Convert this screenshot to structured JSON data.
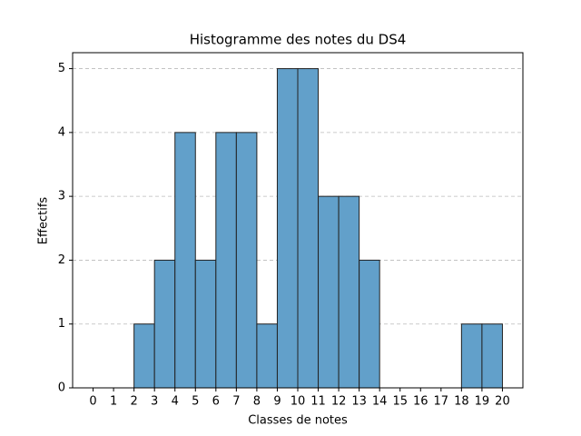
{
  "chart_data": {
    "type": "histogram",
    "title": "Histogramme des notes du DS4",
    "x_label": "Classes de notes",
    "y_label": "Effectifs",
    "bins": [
      0,
      1,
      2,
      3,
      4,
      5,
      6,
      7,
      8,
      9,
      10,
      11,
      12,
      13,
      14,
      15,
      16,
      17,
      18,
      19,
      20
    ],
    "values": [
      0,
      0,
      1,
      2,
      4,
      2,
      4,
      4,
      1,
      5,
      5,
      3,
      3,
      2,
      0,
      0,
      0,
      0,
      1,
      1
    ],
    "color": "#62a0ca",
    "edge_color": "#222222",
    "xlim": [
      -1,
      21
    ],
    "ylim": [
      0,
      5.25
    ],
    "xticks": [
      0,
      1,
      2,
      3,
      4,
      5,
      6,
      7,
      8,
      9,
      10,
      11,
      12,
      13,
      14,
      15,
      16,
      17,
      18,
      19,
      20
    ],
    "yticks": [
      0,
      1,
      2,
      3,
      4,
      5
    ],
    "grid": "y"
  }
}
